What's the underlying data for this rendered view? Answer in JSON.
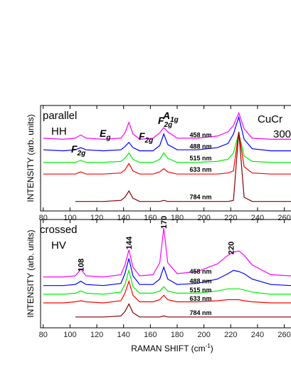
{
  "chart_data": [
    {
      "type": "line",
      "ylabel": "INTENSITY (arb. units)",
      "panel_labels": [
        "parallel",
        "HH",
        "CuCr",
        "300"
      ],
      "annotations": [
        {
          "text": "F",
          "sub": "2g"
        },
        {
          "text": "E",
          "sub": "g"
        },
        {
          "text": "F",
          "sub": "2g"
        },
        {
          "text": "A",
          "sub": "1g"
        },
        {
          "text": "F",
          "sub": "2g"
        }
      ],
      "x": [
        80,
        95,
        104,
        108,
        112,
        125,
        138,
        141,
        144,
        147,
        152,
        162,
        167,
        170,
        173,
        180,
        195,
        210,
        218,
        222,
        226,
        230,
        236,
        250,
        265
      ],
      "xlim": [
        78,
        265
      ],
      "xticks": [
        80,
        100,
        120,
        140,
        160,
        180,
        200,
        220,
        240,
        260
      ],
      "ylim": [
        0,
        10
      ],
      "series": [
        {
          "name": "458 nm",
          "color": "#ff00ff",
          "values": [
            6.9,
            6.8,
            6.9,
            7.2,
            6.9,
            6.8,
            6.9,
            7.4,
            8.4,
            7.3,
            6.8,
            6.9,
            7.4,
            7.9,
            7.5,
            6.9,
            6.9,
            7.1,
            7.5,
            8.1,
            9.3,
            7.8,
            6.9,
            6.8,
            6.8
          ]
        },
        {
          "name": "488 nm",
          "color": "#0000ff",
          "values": [
            5.8,
            5.7,
            5.8,
            6.0,
            5.8,
            5.7,
            5.8,
            6.1,
            6.5,
            6.0,
            5.7,
            5.7,
            6.2,
            7.3,
            6.3,
            5.8,
            5.8,
            6.0,
            6.4,
            7.3,
            8.9,
            6.8,
            5.9,
            5.7,
            5.7
          ]
        },
        {
          "name": "515 nm",
          "color": "#00ee00",
          "values": [
            4.6,
            4.6,
            4.6,
            4.8,
            4.6,
            4.6,
            4.7,
            5.0,
            5.5,
            4.9,
            4.6,
            4.6,
            4.9,
            5.5,
            5.0,
            4.6,
            4.6,
            4.7,
            4.9,
            5.5,
            7.4,
            5.2,
            4.7,
            4.6,
            4.6
          ]
        },
        {
          "name": "633 nm",
          "color": "#ff0000",
          "values": [
            3.5,
            3.5,
            3.5,
            3.7,
            3.5,
            3.5,
            3.6,
            3.9,
            4.5,
            3.8,
            3.5,
            3.5,
            3.7,
            4.0,
            3.7,
            3.5,
            3.5,
            3.5,
            3.6,
            3.8,
            7.5,
            4.2,
            3.6,
            3.5,
            3.5
          ]
        },
        {
          "name": "784 nm",
          "color": "#800000",
          "values": [
            null,
            null,
            0.9,
            0.9,
            0.9,
            0.9,
            1.0,
            1.3,
            1.9,
            1.2,
            0.9,
            0.9,
            0.9,
            1.0,
            0.9,
            0.9,
            0.9,
            0.9,
            0.9,
            1.0,
            7.5,
            1.3,
            0.9,
            0.9,
            0.9
          ]
        }
      ]
    },
    {
      "type": "line",
      "ylabel": "INTENSITY (arb. units)",
      "panel_labels": [
        "crossed",
        "HV"
      ],
      "peak_labels": [
        108,
        144,
        170,
        220
      ],
      "x_label": "RAMAN SHIFT (cm",
      "x_label_sup": "-1",
      "x_label_end": ")",
      "x": [
        80,
        95,
        104,
        108,
        112,
        125,
        138,
        141,
        144,
        147,
        152,
        162,
        167,
        170,
        173,
        180,
        195,
        210,
        218,
        222,
        226,
        230,
        236,
        250,
        265
      ],
      "xlim": [
        78,
        265
      ],
      "xticks": [
        80,
        100,
        120,
        140,
        160,
        180,
        200,
        220,
        240,
        260
      ],
      "ylim": [
        0,
        10
      ],
      "series": [
        {
          "name": "458 nm",
          "color": "#ff00ff",
          "values": [
            4.7,
            4.7,
            4.8,
            5.4,
            4.8,
            4.7,
            4.9,
            5.8,
            7.2,
            5.6,
            4.8,
            4.9,
            6.0,
            9.2,
            6.0,
            5.0,
            5.2,
            5.9,
            6.7,
            7.0,
            7.1,
            6.7,
            5.8,
            4.9,
            4.8
          ]
        },
        {
          "name": "488 nm",
          "color": "#0000ff",
          "values": [
            3.9,
            3.9,
            4.0,
            4.3,
            4.0,
            3.9,
            4.1,
            5.0,
            6.4,
            4.8,
            4.0,
            4.0,
            4.5,
            5.6,
            4.5,
            4.0,
            4.1,
            4.5,
            5.0,
            5.3,
            5.2,
            5.0,
            4.5,
            4.0,
            3.9
          ]
        },
        {
          "name": "515 nm",
          "color": "#00ee00",
          "values": [
            3.1,
            3.1,
            3.2,
            3.4,
            3.2,
            3.1,
            3.3,
            4.0,
            5.3,
            3.8,
            3.2,
            3.2,
            3.4,
            3.8,
            3.4,
            3.2,
            3.2,
            3.4,
            3.6,
            3.6,
            3.6,
            3.5,
            3.3,
            3.1,
            3.1
          ]
        },
        {
          "name": "633 nm",
          "color": "#ff0000",
          "values": [
            2.3,
            2.3,
            2.4,
            2.5,
            2.4,
            2.3,
            2.5,
            3.2,
            4.3,
            3.0,
            2.4,
            2.4,
            2.6,
            3.0,
            2.6,
            2.4,
            2.4,
            2.5,
            2.6,
            2.6,
            2.6,
            2.5,
            2.4,
            2.3,
            2.3
          ]
        },
        {
          "name": "784 nm",
          "color": "#800000",
          "values": [
            null,
            null,
            1.0,
            1.0,
            1.0,
            1.0,
            1.1,
            1.5,
            2.2,
            1.4,
            1.0,
            1.0,
            1.0,
            1.1,
            1.0,
            1.0,
            1.0,
            1.0,
            1.0,
            1.0,
            1.0,
            1.0,
            1.0,
            1.0,
            1.0
          ]
        }
      ]
    }
  ]
}
